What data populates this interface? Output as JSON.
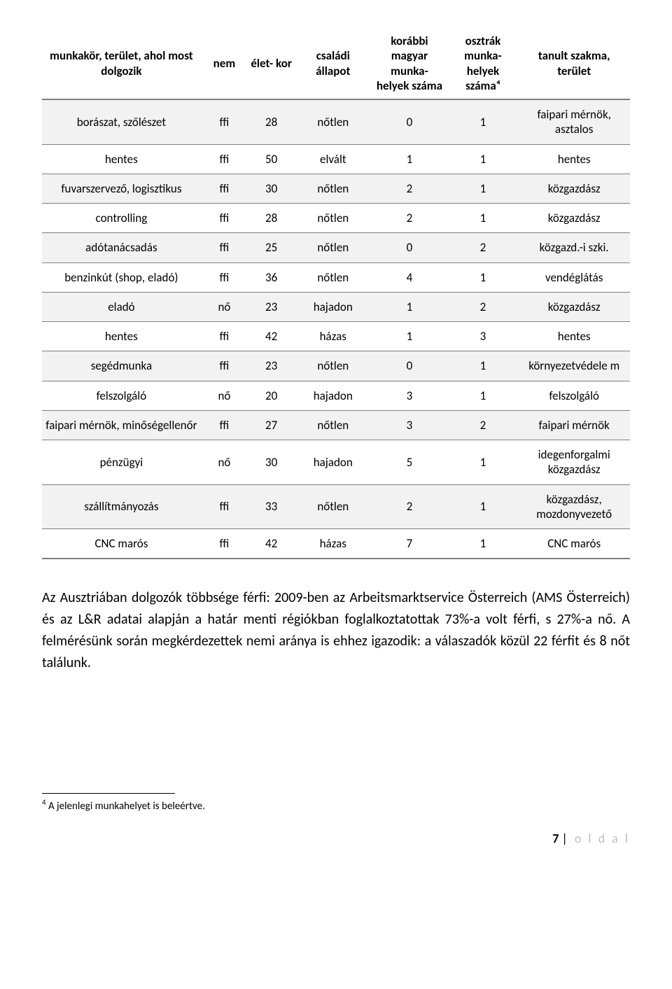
{
  "table": {
    "columns": [
      "munkakör, terület, ahol most dolgozik",
      "nem",
      "élet-\nkor",
      "családi állapot",
      "korábbi magyar munka-\nhelyek száma",
      "osztrák munka-\nhelyek száma⁴",
      "tanult szakma, terület"
    ],
    "rows": [
      [
        "borászat, szőlészet",
        "ffi",
        "28",
        "nőtlen",
        "0",
        "1",
        "faipari mérnök, asztalos"
      ],
      [
        "hentes",
        "ffi",
        "50",
        "elvált",
        "1",
        "1",
        "hentes"
      ],
      [
        "fuvarszervező, logisztikus",
        "ffi",
        "30",
        "nőtlen",
        "2",
        "1",
        "közgazdász"
      ],
      [
        "controlling",
        "ffi",
        "28",
        "nőtlen",
        "2",
        "1",
        "közgazdász"
      ],
      [
        "adótanácsadás",
        "ffi",
        "25",
        "nőtlen",
        "0",
        "2",
        "közgazd.-i szki."
      ],
      [
        "benzinkút (shop, eladó)",
        "ffi",
        "36",
        "nőtlen",
        "4",
        "1",
        "vendéglátás"
      ],
      [
        "eladó",
        "nő",
        "23",
        "hajadon",
        "1",
        "2",
        "közgazdász"
      ],
      [
        "hentes",
        "ffi",
        "42",
        "házas",
        "1",
        "3",
        "hentes"
      ],
      [
        "segédmunka",
        "ffi",
        "23",
        "nőtlen",
        "0",
        "1",
        "környezetvédele\nm"
      ],
      [
        "felszolgáló",
        "nő",
        "20",
        "hajadon",
        "3",
        "1",
        "felszolgáló"
      ],
      [
        "faipari mérnök, minőségellenőr",
        "ffi",
        "27",
        "nőtlen",
        "3",
        "2",
        "faipari mérnök"
      ],
      [
        "pénzügyi",
        "nő",
        "30",
        "hajadon",
        "5",
        "1",
        "idegenforgalmi közgazdász"
      ],
      [
        "szállítmányozás",
        "ffi",
        "33",
        "nőtlen",
        "2",
        "1",
        "közgazdász, mozdonyvezető"
      ],
      [
        "CNC marós",
        "ffi",
        "42",
        "házas",
        "7",
        "1",
        "CNC marós"
      ]
    ],
    "header_bg": "#ffffff",
    "row_odd_bg": "#f2f2f2",
    "row_even_bg": "#ffffff",
    "border_color": "#7f7f7f",
    "header_fontsize": 17,
    "header_fontweight": "bold",
    "cell_fontsize": 17
  },
  "paragraph": "Az Ausztriában dolgozók többsége férfi: 2009-ben az Arbeitsmarktservice Österreich (AMS Österreich) és az L&R adatai alapján a határ menti régiókban foglalkoztatottak 73%-a volt férfi, s 27%-a nő. A felmérésünk során megkérdezettek nemi aránya is ehhez igazodik: a válaszadók közül 22 férfit és 8 nőt találunk.",
  "footnote": {
    "number": "4",
    "text": " A jelenlegi munkahelyet is beleértve."
  },
  "footer": {
    "page_number": "7",
    "label": "o l d a l"
  }
}
